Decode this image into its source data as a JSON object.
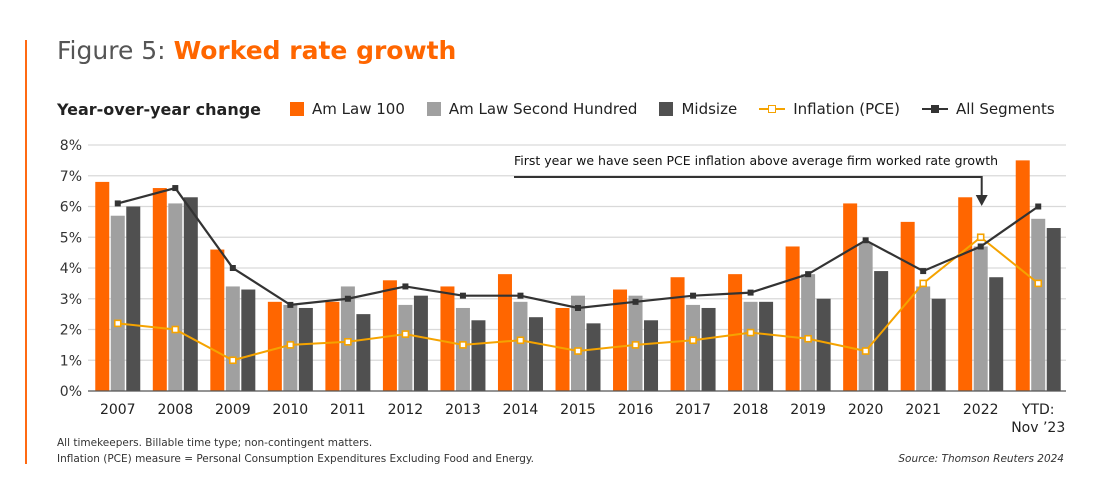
{
  "header": {
    "figure_label": "Figure 5: ",
    "title": "Worked rate growth"
  },
  "chart_data": {
    "type": "bar",
    "subtitle": "Year-over-year change",
    "categories": [
      "2007",
      "2008",
      "2009",
      "2010",
      "2011",
      "2012",
      "2013",
      "2014",
      "2015",
      "2016",
      "2017",
      "2018",
      "2019",
      "2020",
      "2021",
      "2022",
      "YTD:\nNov '23"
    ],
    "category_labels": [
      [
        "2007"
      ],
      [
        "2008"
      ],
      [
        "2009"
      ],
      [
        "2010"
      ],
      [
        "2011"
      ],
      [
        "2012"
      ],
      [
        "2013"
      ],
      [
        "2014"
      ],
      [
        "2015"
      ],
      [
        "2016"
      ],
      [
        "2017"
      ],
      [
        "2018"
      ],
      [
        "2019"
      ],
      [
        "2020"
      ],
      [
        "2021"
      ],
      [
        "2022"
      ],
      [
        "YTD:",
        "Nov ’23"
      ]
    ],
    "ylim": [
      0,
      8
    ],
    "yticks": [
      "0%",
      "1%",
      "2%",
      "3%",
      "4%",
      "5%",
      "6%",
      "7%",
      "8%"
    ],
    "grid": true,
    "legend_placement": "top",
    "series": [
      {
        "name": "Am Law 100",
        "type": "bar",
        "color": "#FF6600",
        "values": [
          6.8,
          6.6,
          4.6,
          2.9,
          2.9,
          3.6,
          3.4,
          3.8,
          2.7,
          3.3,
          3.7,
          3.8,
          4.7,
          6.1,
          5.5,
          6.3,
          7.5
        ]
      },
      {
        "name": "Am Law Second Hundred",
        "type": "bar",
        "color": "#A0A0A0",
        "values": [
          5.7,
          6.1,
          3.4,
          2.8,
          3.4,
          2.8,
          2.7,
          2.9,
          3.1,
          3.1,
          2.8,
          2.9,
          3.8,
          4.8,
          3.4,
          4.7,
          5.6
        ]
      },
      {
        "name": "Midsize",
        "type": "bar",
        "color": "#505050",
        "values": [
          6.0,
          6.3,
          3.3,
          2.7,
          2.5,
          3.1,
          2.3,
          2.4,
          2.2,
          2.3,
          2.7,
          2.9,
          3.0,
          3.9,
          3.0,
          3.7,
          5.3
        ]
      },
      {
        "name": "Inflation (PCE)",
        "type": "line",
        "color": "#F5A300",
        "marker": "open-square",
        "values": [
          2.2,
          2.0,
          1.0,
          1.5,
          1.6,
          1.85,
          1.5,
          1.65,
          1.3,
          1.5,
          1.65,
          1.9,
          1.7,
          1.3,
          3.5,
          5.0,
          3.5
        ]
      },
      {
        "name": "All Segments",
        "type": "line",
        "color": "#333333",
        "marker": "filled-square",
        "values": [
          6.1,
          6.6,
          4.0,
          2.8,
          3.0,
          3.4,
          3.1,
          3.1,
          2.7,
          2.9,
          3.1,
          3.2,
          3.8,
          4.9,
          3.9,
          4.7,
          6.0
        ]
      }
    ],
    "annotation": {
      "text": "First year we have seen PCE inflation above average firm worked rate growth",
      "points_to": "2022"
    }
  },
  "footer": {
    "note1": "All timekeepers. Billable time type; non-contingent matters.",
    "note2": "Inflation (PCE) measure =  Personal Consumption Expenditures Excluding Food and Energy.",
    "source": "Source: Thomson Reuters 2024"
  }
}
